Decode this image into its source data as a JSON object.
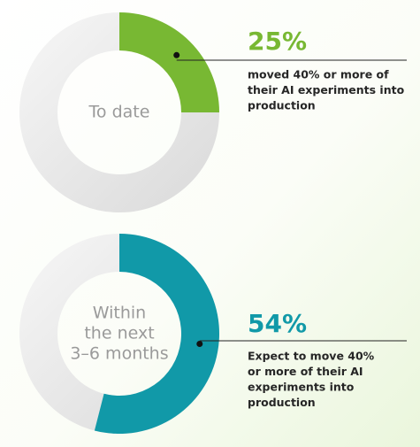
{
  "chart_data": [
    {
      "type": "donut",
      "center_label": [
        "To date"
      ],
      "values": [
        25
      ],
      "value_labels": [
        "25%"
      ],
      "ylim": [
        0,
        100
      ],
      "color": "#78b833",
      "description": [
        "moved 40% or more of",
        "their AI experiments into",
        "production"
      ]
    },
    {
      "type": "donut",
      "center_label": [
        "Within",
        "the next",
        "3–6 months"
      ],
      "values": [
        54
      ],
      "value_labels": [
        "54%"
      ],
      "ylim": [
        0,
        100
      ],
      "color": "#1199a8",
      "description": [
        "Expect to move 40%",
        "or more of their AI",
        "experiments into",
        "production"
      ]
    }
  ]
}
